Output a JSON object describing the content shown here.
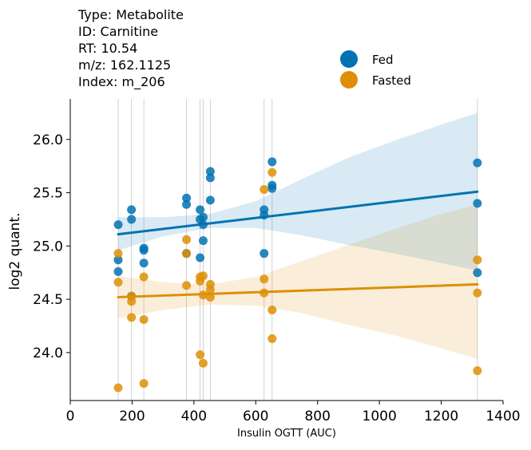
{
  "chart_data": {
    "type": "scatter",
    "info_lines": [
      "Type: Metabolite",
      "ID: Carnitine",
      "RT: 10.54",
      "m/z: 162.1125",
      "Index: m_206"
    ],
    "xlabel": "Insulin OGTT (AUC)",
    "ylabel": "log2 quant.",
    "xlim": [
      0,
      1400
    ],
    "ylim": [
      23.55,
      26.38
    ],
    "x_ticks": [
      0,
      200,
      400,
      600,
      800,
      1000,
      1200,
      1400
    ],
    "y_ticks": [
      24.0,
      24.5,
      25.0,
      25.5,
      26.0
    ],
    "x_tick_labels": [
      "0",
      "200",
      "400",
      "600",
      "800",
      "1000",
      "1200",
      "1400"
    ],
    "y_tick_labels": [
      "24.0",
      "24.5",
      "25.0",
      "25.5",
      "26.0"
    ],
    "vertical_lines_x": [
      155,
      198,
      238,
      376,
      420,
      430,
      453,
      627,
      653,
      1317
    ],
    "legend_position": "top-right",
    "series": [
      {
        "name": "Fed",
        "color": "#0173b2",
        "points": [
          [
            155,
            25.2
          ],
          [
            155,
            24.87
          ],
          [
            155,
            24.76
          ],
          [
            198,
            25.34
          ],
          [
            198,
            25.25
          ],
          [
            198,
            24.53
          ],
          [
            238,
            24.98
          ],
          [
            238,
            24.96
          ],
          [
            238,
            24.84
          ],
          [
            376,
            25.45
          ],
          [
            376,
            25.39
          ],
          [
            376,
            24.93
          ],
          [
            420,
            25.34
          ],
          [
            420,
            25.25
          ],
          [
            420,
            24.89
          ],
          [
            430,
            25.27
          ],
          [
            430,
            25.2
          ],
          [
            430,
            25.05
          ],
          [
            453,
            25.7
          ],
          [
            453,
            25.64
          ],
          [
            453,
            25.43
          ],
          [
            627,
            25.34
          ],
          [
            627,
            25.29
          ],
          [
            627,
            24.93
          ],
          [
            653,
            25.79
          ],
          [
            653,
            25.57
          ],
          [
            653,
            25.54
          ],
          [
            1317,
            25.78
          ],
          [
            1317,
            25.4
          ],
          [
            1317,
            24.75
          ]
        ],
        "fit": {
          "x": [
            155,
            1317
          ],
          "y": [
            25.11,
            25.51
          ]
        },
        "ci": {
          "x": [
            155,
            300,
            450,
            600,
            750,
            900,
            1050,
            1200,
            1317
          ],
          "lower": [
            24.96,
            25.09,
            25.17,
            25.17,
            25.1,
            25.01,
            24.93,
            24.84,
            24.77
          ],
          "upper": [
            25.27,
            25.27,
            25.3,
            25.42,
            25.63,
            25.83,
            25.99,
            26.14,
            26.25
          ]
        }
      },
      {
        "name": "Fasted",
        "color": "#de8f05",
        "points": [
          [
            155,
            24.93
          ],
          [
            155,
            24.66
          ],
          [
            155,
            23.67
          ],
          [
            198,
            24.53
          ],
          [
            198,
            24.48
          ],
          [
            198,
            24.33
          ],
          [
            238,
            24.71
          ],
          [
            238,
            24.31
          ],
          [
            238,
            23.71
          ],
          [
            376,
            25.06
          ],
          [
            376,
            24.93
          ],
          [
            376,
            24.63
          ],
          [
            420,
            24.71
          ],
          [
            420,
            24.67
          ],
          [
            420,
            23.98
          ],
          [
            430,
            24.72
          ],
          [
            430,
            24.54
          ],
          [
            430,
            23.9
          ],
          [
            453,
            24.64
          ],
          [
            453,
            24.59
          ],
          [
            453,
            24.52
          ],
          [
            627,
            25.53
          ],
          [
            627,
            24.69
          ],
          [
            627,
            24.56
          ],
          [
            653,
            25.69
          ],
          [
            653,
            24.4
          ],
          [
            653,
            24.13
          ],
          [
            1317,
            24.87
          ],
          [
            1317,
            24.56
          ],
          [
            1317,
            23.83
          ]
        ],
        "fit": {
          "x": [
            155,
            1317
          ],
          "y": [
            24.52,
            24.64
          ]
        },
        "ci": {
          "x": [
            155,
            300,
            450,
            600,
            750,
            900,
            1050,
            1200,
            1317
          ],
          "lower": [
            24.32,
            24.4,
            24.45,
            24.44,
            24.37,
            24.26,
            24.16,
            24.04,
            23.94
          ],
          "upper": [
            24.72,
            24.66,
            24.64,
            24.71,
            24.86,
            25.01,
            25.16,
            25.3,
            25.39
          ]
        }
      }
    ]
  }
}
